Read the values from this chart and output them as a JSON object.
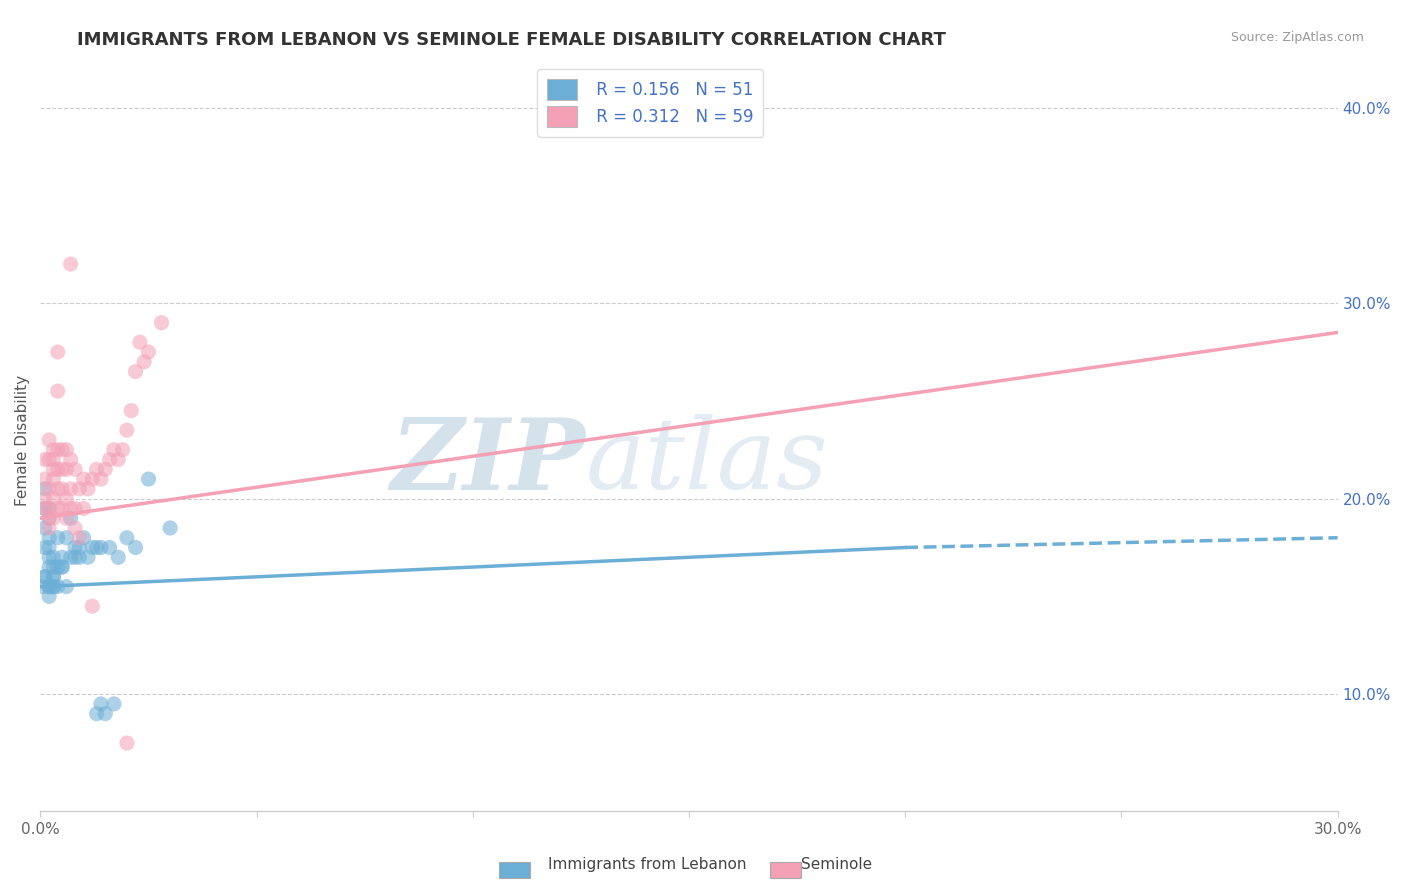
{
  "title": "IMMIGRANTS FROM LEBANON VS SEMINOLE FEMALE DISABILITY CORRELATION CHART",
  "source": "Source: ZipAtlas.com",
  "xlabel_blue": "Immigrants from Lebanon",
  "xlabel_pink": "Seminole",
  "ylabel": "Female Disability",
  "R_blue": 0.156,
  "N_blue": 51,
  "R_pink": 0.312,
  "N_pink": 59,
  "blue_color": "#6baed6",
  "pink_color": "#f4a0b5",
  "blue_scatter": [
    [
      0.0005,
      0.155
    ],
    [
      0.001,
      0.16
    ],
    [
      0.001,
      0.175
    ],
    [
      0.001,
      0.185
    ],
    [
      0.001,
      0.195
    ],
    [
      0.001,
      0.205
    ],
    [
      0.001,
      0.16
    ],
    [
      0.002,
      0.15
    ],
    [
      0.002,
      0.155
    ],
    [
      0.002,
      0.165
    ],
    [
      0.002,
      0.17
    ],
    [
      0.002,
      0.175
    ],
    [
      0.002,
      0.18
    ],
    [
      0.002,
      0.19
    ],
    [
      0.002,
      0.195
    ],
    [
      0.002,
      0.155
    ],
    [
      0.003,
      0.155
    ],
    [
      0.003,
      0.16
    ],
    [
      0.003,
      0.165
    ],
    [
      0.003,
      0.17
    ],
    [
      0.003,
      0.155
    ],
    [
      0.003,
      0.16
    ],
    [
      0.004,
      0.165
    ],
    [
      0.004,
      0.18
    ],
    [
      0.004,
      0.155
    ],
    [
      0.005,
      0.165
    ],
    [
      0.005,
      0.17
    ],
    [
      0.005,
      0.165
    ],
    [
      0.006,
      0.155
    ],
    [
      0.006,
      0.18
    ],
    [
      0.007,
      0.19
    ],
    [
      0.007,
      0.17
    ],
    [
      0.008,
      0.175
    ],
    [
      0.008,
      0.17
    ],
    [
      0.009,
      0.175
    ],
    [
      0.009,
      0.17
    ],
    [
      0.01,
      0.18
    ],
    [
      0.011,
      0.17
    ],
    [
      0.012,
      0.175
    ],
    [
      0.013,
      0.175
    ],
    [
      0.014,
      0.175
    ],
    [
      0.014,
      0.095
    ],
    [
      0.016,
      0.175
    ],
    [
      0.018,
      0.17
    ],
    [
      0.02,
      0.18
    ],
    [
      0.022,
      0.175
    ],
    [
      0.025,
      0.21
    ],
    [
      0.03,
      0.185
    ],
    [
      0.013,
      0.09
    ],
    [
      0.015,
      0.09
    ],
    [
      0.017,
      0.095
    ]
  ],
  "pink_scatter": [
    [
      0.001,
      0.2
    ],
    [
      0.001,
      0.21
    ],
    [
      0.001,
      0.22
    ],
    [
      0.001,
      0.195
    ],
    [
      0.002,
      0.19
    ],
    [
      0.002,
      0.205
    ],
    [
      0.002,
      0.22
    ],
    [
      0.002,
      0.23
    ],
    [
      0.002,
      0.195
    ],
    [
      0.002,
      0.185
    ],
    [
      0.003,
      0.19
    ],
    [
      0.003,
      0.2
    ],
    [
      0.003,
      0.21
    ],
    [
      0.003,
      0.22
    ],
    [
      0.003,
      0.215
    ],
    [
      0.003,
      0.225
    ],
    [
      0.004,
      0.195
    ],
    [
      0.004,
      0.205
    ],
    [
      0.004,
      0.215
    ],
    [
      0.004,
      0.225
    ],
    [
      0.004,
      0.255
    ],
    [
      0.004,
      0.275
    ],
    [
      0.005,
      0.195
    ],
    [
      0.005,
      0.205
    ],
    [
      0.005,
      0.215
    ],
    [
      0.005,
      0.225
    ],
    [
      0.006,
      0.19
    ],
    [
      0.006,
      0.2
    ],
    [
      0.006,
      0.215
    ],
    [
      0.006,
      0.225
    ],
    [
      0.007,
      0.195
    ],
    [
      0.007,
      0.205
    ],
    [
      0.007,
      0.22
    ],
    [
      0.008,
      0.195
    ],
    [
      0.008,
      0.215
    ],
    [
      0.008,
      0.185
    ],
    [
      0.009,
      0.205
    ],
    [
      0.009,
      0.18
    ],
    [
      0.01,
      0.195
    ],
    [
      0.01,
      0.21
    ],
    [
      0.011,
      0.205
    ],
    [
      0.012,
      0.21
    ],
    [
      0.013,
      0.215
    ],
    [
      0.014,
      0.21
    ],
    [
      0.015,
      0.215
    ],
    [
      0.016,
      0.22
    ],
    [
      0.017,
      0.225
    ],
    [
      0.018,
      0.22
    ],
    [
      0.019,
      0.225
    ],
    [
      0.02,
      0.235
    ],
    [
      0.021,
      0.245
    ],
    [
      0.022,
      0.265
    ],
    [
      0.024,
      0.27
    ],
    [
      0.025,
      0.275
    ],
    [
      0.012,
      0.145
    ],
    [
      0.007,
      0.32
    ],
    [
      0.02,
      0.075
    ],
    [
      0.023,
      0.28
    ],
    [
      0.028,
      0.29
    ]
  ],
  "blue_trend_solid": {
    "x_start": 0.0,
    "x_end": 0.2,
    "y_start": 0.155,
    "y_end": 0.175
  },
  "blue_trend_dashed": {
    "x_start": 0.2,
    "x_end": 0.3,
    "y_start": 0.175,
    "y_end": 0.18
  },
  "pink_trend": {
    "x_start": 0.0,
    "x_end": 0.3,
    "y_start": 0.19,
    "y_end": 0.285
  },
  "xmin": 0.0,
  "xmax": 0.3,
  "ymin": 0.04,
  "ymax": 0.42,
  "yticks": [
    0.1,
    0.2,
    0.3,
    0.4
  ],
  "ytick_labels": [
    "10.0%",
    "20.0%",
    "30.0%",
    "40.0%"
  ],
  "xticks": [
    0.0,
    0.05,
    0.1,
    0.15,
    0.2,
    0.25,
    0.3
  ],
  "xtick_labels": [
    "0.0%",
    "",
    "",
    "",
    "",
    "",
    "30.0%"
  ],
  "grid_color": "#cccccc",
  "title_fontsize": 13,
  "label_fontsize": 11,
  "tick_fontsize": 11,
  "legend_R_N_text_color": "#4472c4",
  "right_tick_color": "#4472c4"
}
